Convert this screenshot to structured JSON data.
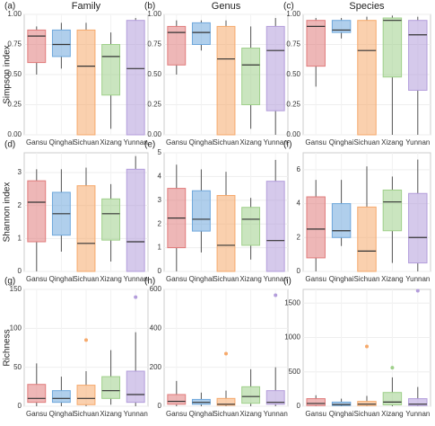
{
  "chart_data": [
    {
      "type": "box",
      "panel": "(a)",
      "title": "Family",
      "ylabel": "Simpson index",
      "categories": [
        "Gansu",
        "Qinghai",
        "Sichuan",
        "Xizang",
        "Yunnan"
      ],
      "colors": [
        "#e07b7b",
        "#6fa8dc",
        "#f6a96b",
        "#9fd08a",
        "#b39ddb"
      ],
      "ylim": [
        0,
        1
      ],
      "yticks": [
        {
          "value": 0,
          "label": "0.00"
        },
        {
          "value": 0.25,
          "label": "0.25"
        },
        {
          "value": 0.5,
          "label": "0.50"
        },
        {
          "value": 0.75,
          "label": "0.75"
        },
        {
          "value": 1,
          "label": "1.00"
        }
      ],
      "boxes": [
        {
          "min": 0.5,
          "q1": 0.6,
          "median": 0.82,
          "q3": 0.87,
          "max": 0.9
        },
        {
          "min": 0.55,
          "q1": 0.65,
          "median": 0.75,
          "q3": 0.87,
          "max": 0.93
        },
        {
          "min": 0,
          "q1": 0,
          "median": 0.57,
          "q3": 0.87,
          "max": 0.93
        },
        {
          "min": 0.05,
          "q1": 0.33,
          "median": 0.65,
          "q3": 0.75,
          "max": 0.85
        },
        {
          "min": 0,
          "q1": 0,
          "median": 0.55,
          "q3": 0.95,
          "max": 0.97
        }
      ]
    },
    {
      "type": "box",
      "panel": "(b)",
      "title": "Genus",
      "categories": [
        "Gansu",
        "Qinghai",
        "Sichuan",
        "Xizang",
        "Yunnan"
      ],
      "colors": [
        "#e07b7b",
        "#6fa8dc",
        "#f6a96b",
        "#9fd08a",
        "#b39ddb"
      ],
      "ylim": [
        0,
        1
      ],
      "yticks": [
        {
          "value": 0,
          "label": "0.00"
        },
        {
          "value": 0.25,
          "label": "0.25"
        },
        {
          "value": 0.5,
          "label": "0.50"
        },
        {
          "value": 0.75,
          "label": "0.75"
        },
        {
          "value": 1,
          "label": "1.00"
        }
      ],
      "boxes": [
        {
          "min": 0.5,
          "q1": 0.58,
          "median": 0.85,
          "q3": 0.9,
          "max": 0.95
        },
        {
          "min": 0.7,
          "q1": 0.75,
          "median": 0.85,
          "q3": 0.93,
          "max": 0.95
        },
        {
          "min": 0,
          "q1": 0,
          "median": 0.63,
          "q3": 0.9,
          "max": 0.95
        },
        {
          "min": 0.05,
          "q1": 0.25,
          "median": 0.58,
          "q3": 0.72,
          "max": 0.9
        },
        {
          "min": 0,
          "q1": 0.2,
          "median": 0.7,
          "q3": 0.9,
          "max": 0.97
        }
      ]
    },
    {
      "type": "box",
      "panel": "(c)",
      "title": "Species",
      "categories": [
        "Gansu",
        "Qinghai",
        "Sichuan",
        "Xizang",
        "Yunnan"
      ],
      "colors": [
        "#e07b7b",
        "#6fa8dc",
        "#f6a96b",
        "#9fd08a",
        "#b39ddb"
      ],
      "ylim": [
        0,
        1
      ],
      "yticks": [
        {
          "value": 0,
          "label": "0.00"
        },
        {
          "value": 0.25,
          "label": "0.25"
        },
        {
          "value": 0.5,
          "label": "0.50"
        },
        {
          "value": 0.75,
          "label": "0.75"
        },
        {
          "value": 1,
          "label": "1.00"
        }
      ],
      "boxes": [
        {
          "min": 0.4,
          "q1": 0.57,
          "median": 0.9,
          "q3": 0.95,
          "max": 0.97
        },
        {
          "min": 0.8,
          "q1": 0.85,
          "median": 0.87,
          "q3": 0.95,
          "max": 0.97
        },
        {
          "min": 0,
          "q1": 0,
          "median": 0.7,
          "q3": 0.95,
          "max": 0.98
        },
        {
          "min": 0,
          "q1": 0.48,
          "median": 0.95,
          "q3": 0.97,
          "max": 0.99
        },
        {
          "min": 0,
          "q1": 0.37,
          "median": 0.83,
          "q3": 0.95,
          "max": 0.98
        }
      ]
    },
    {
      "type": "box",
      "panel": "(d)",
      "ylabel": "Shannon index",
      "categories": [
        "Gansu",
        "Qinghai",
        "Sichuan",
        "Xizang",
        "Yunnan"
      ],
      "colors": [
        "#e07b7b",
        "#6fa8dc",
        "#f6a96b",
        "#9fd08a",
        "#b39ddb"
      ],
      "ylim": [
        0,
        3.6
      ],
      "yticks": [
        0,
        1,
        2,
        3
      ],
      "boxes": [
        {
          "min": 0,
          "q1": 0.9,
          "median": 2.1,
          "q3": 2.75,
          "max": 3.1
        },
        {
          "min": 0.6,
          "q1": 1.1,
          "median": 1.75,
          "q3": 2.4,
          "max": 3.1
        },
        {
          "min": 0,
          "q1": 0,
          "median": 0.85,
          "q3": 2.6,
          "max": 3.15
        },
        {
          "min": 0.3,
          "q1": 0.95,
          "median": 1.75,
          "q3": 2.2,
          "max": 2.65
        },
        {
          "min": 0,
          "q1": 0,
          "median": 0.9,
          "q3": 3.1,
          "max": 3.5
        }
      ]
    },
    {
      "type": "box",
      "panel": "(e)",
      "categories": [
        "Gansu",
        "Qinghai",
        "Sichuan",
        "Xizang",
        "Yunnan"
      ],
      "colors": [
        "#e07b7b",
        "#6fa8dc",
        "#f6a96b",
        "#9fd08a",
        "#b39ddb"
      ],
      "ylim": [
        0,
        5
      ],
      "yticks": [
        0,
        1,
        2,
        3,
        4,
        5
      ],
      "boxes": [
        {
          "min": 0,
          "q1": 1,
          "median": 2.25,
          "q3": 3.5,
          "max": 4.5
        },
        {
          "min": 0.8,
          "q1": 1.7,
          "median": 2.2,
          "q3": 3.4,
          "max": 4.3
        },
        {
          "min": 0,
          "q1": 0,
          "median": 1.1,
          "q3": 3.2,
          "max": 4.2
        },
        {
          "min": 0.5,
          "q1": 1.1,
          "median": 2.2,
          "q3": 2.7,
          "max": 3.1
        },
        {
          "min": 0,
          "q1": 0,
          "median": 1.3,
          "q3": 3.8,
          "max": 4.7
        }
      ]
    },
    {
      "type": "box",
      "panel": "(f)",
      "categories": [
        "Gansu",
        "Qinghai",
        "Sichuan",
        "Xizang",
        "Yunnan"
      ],
      "colors": [
        "#e07b7b",
        "#6fa8dc",
        "#f6a96b",
        "#9fd08a",
        "#b39ddb"
      ],
      "ylim": [
        0,
        7
      ],
      "yticks": [
        0,
        2,
        4,
        6
      ],
      "boxes": [
        {
          "min": 0,
          "q1": 0.8,
          "median": 2.5,
          "q3": 4.4,
          "max": 5.4
        },
        {
          "min": 1.5,
          "q1": 2,
          "median": 2.4,
          "q3": 4,
          "max": 5.4
        },
        {
          "min": 0,
          "q1": 0,
          "median": 1.2,
          "q3": 3.8,
          "max": 6.2
        },
        {
          "min": 0.5,
          "q1": 2.4,
          "median": 4.1,
          "q3": 4.8,
          "max": 5.6
        },
        {
          "min": 0,
          "q1": 0.5,
          "median": 2,
          "q3": 4.6,
          "max": 6.6
        }
      ]
    },
    {
      "type": "box",
      "panel": "(g)",
      "ylabel": "Richness",
      "categories": [
        "Gansu",
        "Qinghai",
        "Sichuan",
        "Xizang",
        "Yunnan"
      ],
      "colors": [
        "#e07b7b",
        "#6fa8dc",
        "#f6a96b",
        "#9fd08a",
        "#b39ddb"
      ],
      "ylim": [
        0,
        150
      ],
      "yticks": [
        0,
        50,
        100,
        150
      ],
      "boxes": [
        {
          "min": 0,
          "q1": 5,
          "median": 10,
          "q3": 28,
          "max": 55
        },
        {
          "min": 0,
          "q1": 5,
          "median": 10,
          "q3": 20,
          "max": 38
        },
        {
          "min": 0,
          "q1": 2,
          "median": 10,
          "q3": 27,
          "max": 45
        },
        {
          "min": 2,
          "q1": 10,
          "median": 20,
          "q3": 38,
          "max": 72
        },
        {
          "min": 0,
          "q1": 5,
          "median": 15,
          "q3": 45,
          "max": 95
        }
      ],
      "outliers": [
        [],
        [],
        [
          85
        ],
        [],
        [
          140
        ]
      ]
    },
    {
      "type": "box",
      "panel": "(h)",
      "categories": [
        "Gansu",
        "Qinghai",
        "Sichuan",
        "Xizang",
        "Yunnan"
      ],
      "colors": [
        "#e07b7b",
        "#6fa8dc",
        "#f6a96b",
        "#9fd08a",
        "#b39ddb"
      ],
      "ylim": [
        0,
        600
      ],
      "yticks": [
        0,
        200,
        400,
        600
      ],
      "boxes": [
        {
          "min": 0,
          "q1": 10,
          "median": 25,
          "q3": 60,
          "max": 130
        },
        {
          "min": 0,
          "q1": 10,
          "median": 20,
          "q3": 35,
          "max": 70
        },
        {
          "min": 0,
          "q1": 5,
          "median": 10,
          "q3": 40,
          "max": 80
        },
        {
          "min": 0,
          "q1": 15,
          "median": 50,
          "q3": 100,
          "max": 190
        },
        {
          "min": 0,
          "q1": 10,
          "median": 20,
          "q3": 80,
          "max": 200
        }
      ],
      "outliers": [
        [],
        [],
        [
          270
        ],
        [],
        [
          570
        ]
      ]
    },
    {
      "type": "box",
      "panel": "(i)",
      "categories": [
        "Gansu",
        "Qinghai",
        "Sichuan",
        "Xizang",
        "Yunnan"
      ],
      "colors": [
        "#e07b7b",
        "#6fa8dc",
        "#f6a96b",
        "#9fd08a",
        "#b39ddb"
      ],
      "ylim": [
        0,
        1700
      ],
      "yticks": [
        0,
        500,
        1000,
        1500
      ],
      "boxes": [
        {
          "min": 0,
          "q1": 10,
          "median": 40,
          "q3": 110,
          "max": 160
        },
        {
          "min": 0,
          "q1": 10,
          "median": 25,
          "q3": 60,
          "max": 110
        },
        {
          "min": 0,
          "q1": 10,
          "median": 30,
          "q3": 70,
          "max": 150
        },
        {
          "min": 0,
          "q1": 20,
          "median": 60,
          "q3": 200,
          "max": 420
        },
        {
          "min": 0,
          "q1": 10,
          "median": 30,
          "q3": 110,
          "max": 280
        }
      ],
      "outliers": [
        [],
        [],
        [
          870
        ],
        [
          560
        ],
        [
          1680
        ]
      ]
    }
  ]
}
